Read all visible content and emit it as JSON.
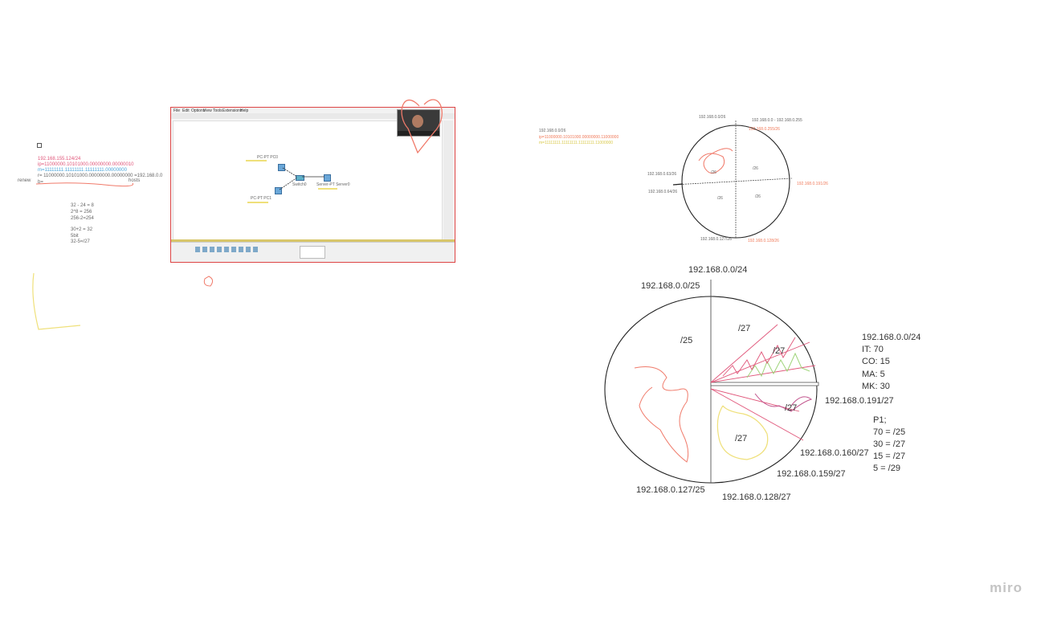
{
  "brand": {
    "logo": "miro"
  },
  "left_notes": {
    "ip_lines": [
      {
        "text": "192.168.155.124/24",
        "color": "pink"
      },
      {
        "text": "ip=11000000.10101000.00000000.00000010",
        "color": "pink"
      },
      {
        "text": "m=11111111.11111111.11111111.00000000",
        "color": "blue"
      },
      {
        "text": "r= 11000000.10101000.00000000.00000000 =192.168.0.0",
        "color": "grey"
      },
      {
        "text": "b=",
        "color": "grey"
      }
    ],
    "side_labels": {
      "left": "renew",
      "right": "hosts"
    },
    "calc_lines": [
      "32 - 24 = 8",
      "2^8 = 256",
      "256-2=254",
      "",
      "30+2 = 32",
      "5bit",
      "32-5=/27"
    ]
  },
  "packet_tracer": {
    "menu_items": [
      "File",
      "Edit",
      "Options",
      "View",
      "Tools",
      "Extensions",
      "Help"
    ],
    "device_labels": [
      "PC-PT PC0",
      "Switch0",
      "Server-PT Server0",
      "PC-PT PC1"
    ]
  },
  "top_circle": {
    "header": {
      "network": "192.168.0.0/26",
      "ip": "ip=11000000.10101000.00000000.11000000",
      "mask": "m=11111111.11111111.11111111.11000000"
    },
    "labels": {
      "top": "192.168.0.0/26",
      "top_right_range": "192.168.0.0 - 192.168.0.255",
      "top_right": "192.168.0.255/26",
      "left_upper": "192.168.0.63/26",
      "left_lower": "192.168.0.64/26",
      "right": "192.168.0.191/26",
      "bottom_left": "192.168.0.127/26",
      "bottom_right": "192.168.0.128/26"
    },
    "quadrants": [
      "/26",
      "/26",
      "/26",
      "/26"
    ]
  },
  "bottom_circle": {
    "labels": {
      "top": "192.168.0.0/24",
      "top_left": "192.168.0.0/25",
      "right_mid": "192.168.0.191/27",
      "right_low": "192.168.0.160/27",
      "right_lower": "192.168.0.159/27",
      "bottom_left": "192.168.0.127/25",
      "bottom": "192.168.0.128/27"
    },
    "segments": [
      "/25",
      "/27",
      "/27",
      "/27",
      "/27"
    ]
  },
  "requirements": {
    "network": "192.168.0.0/24",
    "items": [
      "IT: 70",
      "CO: 15",
      "MA: 5",
      "MK: 30"
    ],
    "plan_title": "P1;",
    "plan": [
      "70 =  /25",
      "30 = /27",
      "15 = /27",
      "5 = /29"
    ]
  },
  "colors": {
    "pink": "#e0567a",
    "orange": "#f07a5a",
    "yellow": "#efe07a",
    "green": "#9fd47a",
    "heart": "#f07a6a",
    "frame": "#d44444"
  }
}
